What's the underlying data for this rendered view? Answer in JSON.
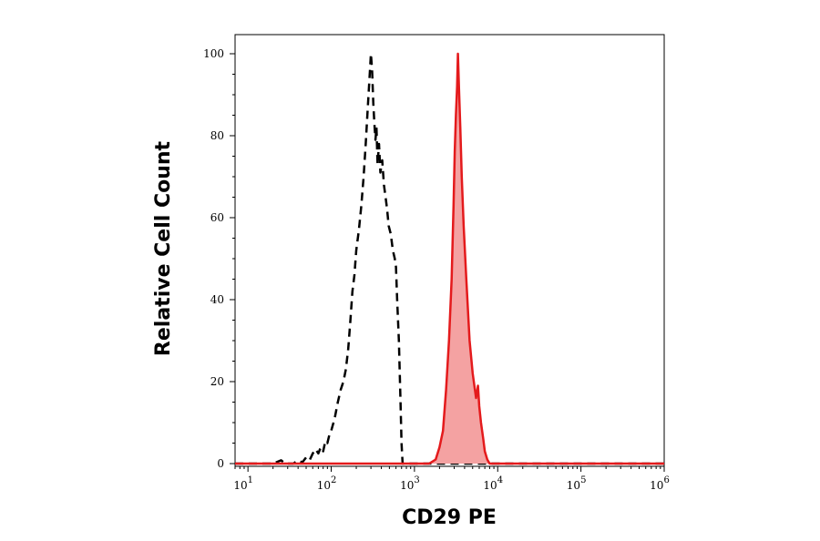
{
  "chart_data": {
    "type": "line",
    "title": "",
    "xlabel": "CD29 PE",
    "ylabel": "Relative Cell Count",
    "x_scale": "log",
    "xlim": [
      7,
      1000000
    ],
    "ylim": [
      0,
      104
    ],
    "grid": false,
    "legend": "none",
    "x_ticks": [
      {
        "value": 10,
        "base": "10",
        "exp": "1"
      },
      {
        "value": 100,
        "base": "10",
        "exp": "2"
      },
      {
        "value": 1000,
        "base": "10",
        "exp": "3"
      },
      {
        "value": 10000,
        "base": "10",
        "exp": "4"
      },
      {
        "value": 100000,
        "base": "10",
        "exp": "5"
      },
      {
        "value": 1000000,
        "base": "10",
        "exp": "6"
      }
    ],
    "y_ticks": [
      "0",
      "20",
      "40",
      "60",
      "80",
      "100"
    ],
    "series": [
      {
        "style": "dashed",
        "color": "#000000",
        "fill": "none",
        "points": [
          [
            7,
            0
          ],
          [
            20,
            0
          ],
          [
            25,
            0.8
          ],
          [
            28,
            0
          ],
          [
            35,
            0
          ],
          [
            40,
            0.8
          ],
          [
            45,
            0.3
          ],
          [
            50,
            1.5
          ],
          [
            55,
            0.8
          ],
          [
            60,
            2.5
          ],
          [
            65,
            3.5
          ],
          [
            70,
            2.5
          ],
          [
            75,
            4
          ],
          [
            80,
            3
          ],
          [
            85,
            5.5
          ],
          [
            90,
            5
          ],
          [
            95,
            7
          ],
          [
            100,
            8
          ],
          [
            110,
            11
          ],
          [
            120,
            15
          ],
          [
            130,
            18
          ],
          [
            140,
            20
          ],
          [
            150,
            23
          ],
          [
            160,
            28
          ],
          [
            170,
            35
          ],
          [
            180,
            42
          ],
          [
            190,
            46
          ],
          [
            200,
            52
          ],
          [
            215,
            57
          ],
          [
            230,
            63
          ],
          [
            245,
            70
          ],
          [
            260,
            78
          ],
          [
            275,
            87
          ],
          [
            290,
            95
          ],
          [
            300,
            100
          ],
          [
            310,
            96
          ],
          [
            320,
            88
          ],
          [
            330,
            83
          ],
          [
            340,
            79
          ],
          [
            350,
            82
          ],
          [
            360,
            73
          ],
          [
            375,
            78
          ],
          [
            390,
            71
          ],
          [
            410,
            74
          ],
          [
            430,
            68
          ],
          [
            450,
            65
          ],
          [
            470,
            62
          ],
          [
            490,
            58
          ],
          [
            520,
            56
          ],
          [
            550,
            52
          ],
          [
            580,
            50
          ],
          [
            600,
            48
          ],
          [
            620,
            40
          ],
          [
            650,
            30
          ],
          [
            680,
            15
          ],
          [
            700,
            5
          ],
          [
            720,
            0
          ],
          [
            1000000,
            0
          ]
        ]
      },
      {
        "style": "solid",
        "color": "#e41a1c",
        "fill": "#f4a2a2",
        "points": [
          [
            7,
            0
          ],
          [
            1500,
            0
          ],
          [
            1800,
            1
          ],
          [
            2000,
            4
          ],
          [
            2200,
            8
          ],
          [
            2400,
            18
          ],
          [
            2600,
            30
          ],
          [
            2800,
            45
          ],
          [
            2950,
            63
          ],
          [
            3050,
            76
          ],
          [
            3150,
            85
          ],
          [
            3250,
            92
          ],
          [
            3330,
            100
          ],
          [
            3420,
            92
          ],
          [
            3550,
            82
          ],
          [
            3700,
            70
          ],
          [
            3900,
            58
          ],
          [
            4200,
            45
          ],
          [
            4600,
            30
          ],
          [
            5000,
            22
          ],
          [
            5500,
            16
          ],
          [
            5800,
            19
          ],
          [
            6000,
            14
          ],
          [
            6300,
            10
          ],
          [
            6700,
            6
          ],
          [
            7000,
            3
          ],
          [
            7500,
            1
          ],
          [
            8000,
            0
          ],
          [
            1000000,
            0
          ]
        ]
      }
    ]
  }
}
